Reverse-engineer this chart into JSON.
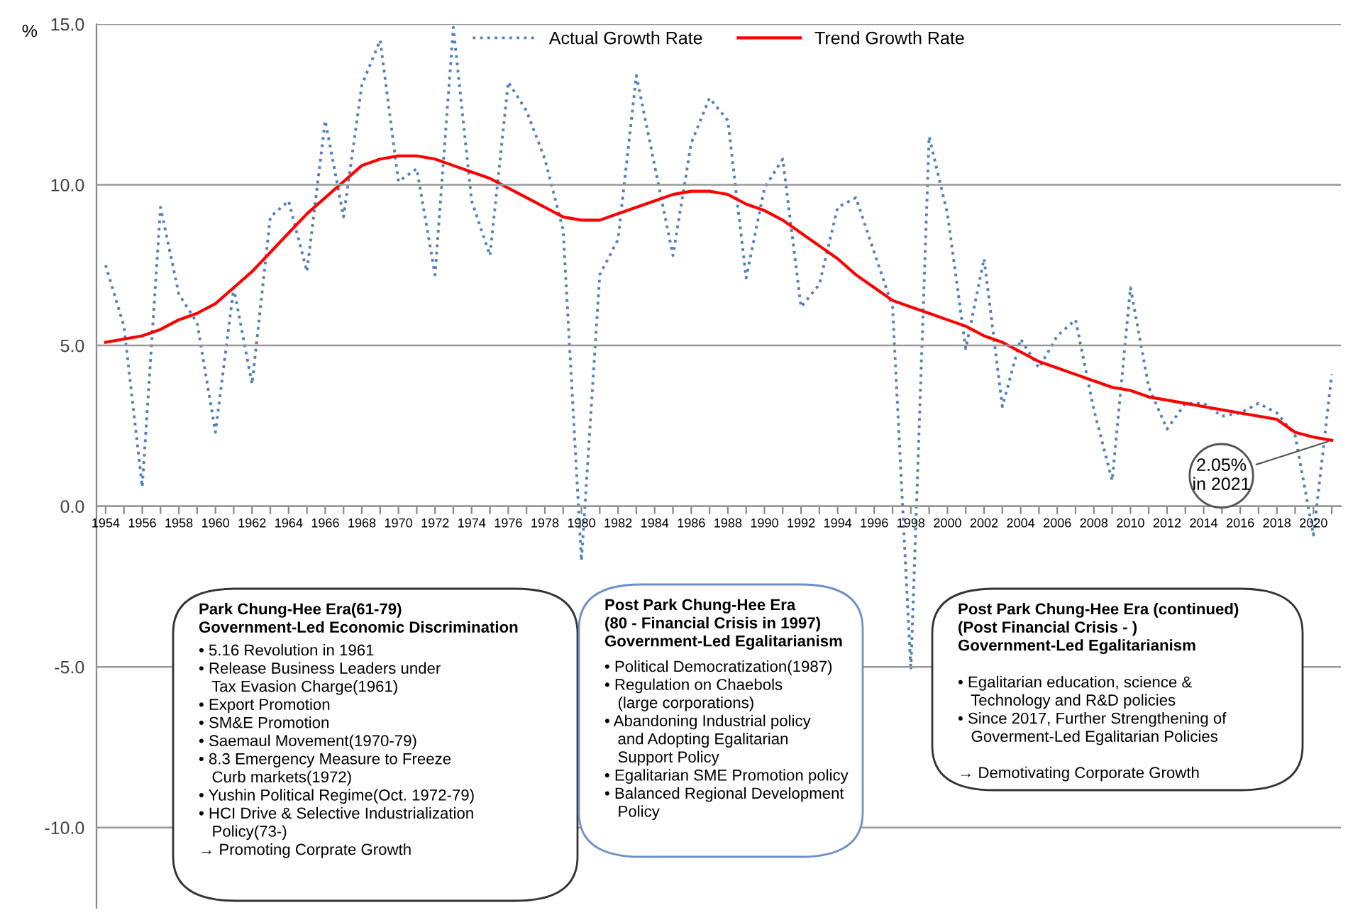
{
  "chart_data": {
    "type": "line",
    "ylabel": "%",
    "x": [
      1954,
      1955,
      1956,
      1957,
      1958,
      1959,
      1960,
      1961,
      1962,
      1963,
      1964,
      1965,
      1966,
      1967,
      1968,
      1969,
      1970,
      1971,
      1972,
      1973,
      1974,
      1975,
      1976,
      1977,
      1978,
      1979,
      1980,
      1981,
      1982,
      1983,
      1984,
      1985,
      1986,
      1987,
      1988,
      1989,
      1990,
      1991,
      1992,
      1993,
      1994,
      1995,
      1996,
      1997,
      1998,
      1999,
      2000,
      2001,
      2002,
      2003,
      2004,
      2005,
      2006,
      2007,
      2008,
      2009,
      2010,
      2011,
      2012,
      2013,
      2014,
      2015,
      2016,
      2017,
      2018,
      2019,
      2020,
      2021
    ],
    "series": [
      {
        "name": "Actual Growth Rate",
        "color": "#4f81bd",
        "line_style": "dotted",
        "values": [
          7.5,
          5.6,
          0.6,
          9.3,
          6.6,
          5.7,
          2.3,
          6.8,
          3.8,
          9.0,
          9.5,
          7.3,
          12.0,
          9.0,
          13.1,
          14.5,
          10.1,
          10.5,
          7.2,
          14.9,
          9.5,
          7.8,
          13.2,
          12.3,
          10.8,
          8.6,
          -1.7,
          7.2,
          8.3,
          13.4,
          10.6,
          7.8,
          11.3,
          12.7,
          12.0,
          7.1,
          9.9,
          10.8,
          6.2,
          6.9,
          9.3,
          9.6,
          7.9,
          6.2,
          -5.1,
          11.5,
          9.1,
          4.9,
          7.7,
          3.1,
          5.2,
          4.3,
          5.3,
          5.8,
          3.0,
          0.8,
          6.8,
          3.7,
          2.4,
          3.2,
          3.2,
          2.8,
          2.9,
          3.2,
          2.9,
          2.2,
          -0.9,
          4.1
        ]
      },
      {
        "name": "Trend Growth Rate",
        "color": "#ff0000",
        "line_style": "solid",
        "values": [
          5.1,
          5.2,
          5.3,
          5.5,
          5.8,
          6.0,
          6.3,
          6.8,
          7.3,
          7.9,
          8.5,
          9.1,
          9.6,
          10.1,
          10.6,
          10.8,
          10.9,
          10.9,
          10.8,
          10.6,
          10.4,
          10.2,
          9.9,
          9.6,
          9.3,
          9.0,
          8.9,
          8.9,
          9.1,
          9.3,
          9.5,
          9.7,
          9.8,
          9.8,
          9.7,
          9.4,
          9.2,
          8.9,
          8.5,
          8.1,
          7.7,
          7.2,
          6.8,
          6.4,
          6.2,
          6.0,
          5.8,
          5.6,
          5.3,
          5.1,
          4.8,
          4.5,
          4.3,
          4.1,
          3.9,
          3.7,
          3.6,
          3.4,
          3.3,
          3.2,
          3.1,
          3.0,
          2.9,
          2.8,
          2.7,
          2.3,
          2.15,
          2.05
        ]
      }
    ],
    "xlim": [
      1953.5,
      2021.5
    ],
    "ylim": [
      -12.5,
      15
    ],
    "yticks": [
      {
        "value": -10,
        "label": "-10.0"
      },
      {
        "value": -5,
        "label": "-5.0"
      },
      {
        "value": 0,
        "label": "0.0"
      },
      {
        "value": 5,
        "label": "5.0"
      },
      {
        "value": 10,
        "label": "10.0"
      },
      {
        "value": 15,
        "label": "15.0"
      }
    ],
    "xticks": [
      1954,
      {
        "value": 1955,
        "label": null
      },
      1956,
      {
        "value": 1957,
        "label": null
      },
      1958,
      {
        "value": 1959,
        "label": null
      },
      1960,
      {
        "value": 1961,
        "label": null
      },
      1962,
      {
        "value": 1963,
        "label": null
      },
      1964,
      {
        "value": 1965,
        "label": null
      },
      1966,
      {
        "value": 1967,
        "label": null
      },
      1968,
      {
        "value": 1969,
        "label": null
      },
      1970,
      {
        "value": 1971,
        "label": null
      },
      1972,
      {
        "value": 1973,
        "label": null
      },
      1974,
      {
        "value": 1975,
        "label": null
      },
      1976,
      {
        "value": 1977,
        "label": null
      },
      1978,
      {
        "value": 1979,
        "label": null
      },
      1980,
      {
        "value": 1981,
        "label": null
      },
      1982,
      {
        "value": 1983,
        "label": null
      },
      1984,
      {
        "value": 1985,
        "label": null
      },
      1986,
      {
        "value": 1987,
        "label": null
      },
      1988,
      {
        "value": 1989,
        "label": null
      },
      1990,
      {
        "value": 1991,
        "label": null
      },
      1992,
      {
        "value": 1993,
        "label": null
      },
      1994,
      {
        "value": 1995,
        "label": null
      },
      1996,
      {
        "value": 1997,
        "label": null
      },
      1998,
      {
        "value": 1999,
        "label": null
      },
      2000,
      {
        "value": 2001,
        "label": null
      },
      2002,
      {
        "value": 2003,
        "label": null
      },
      2004,
      {
        "value": 2005,
        "label": null
      },
      2006,
      {
        "value": 2007,
        "label": null
      },
      2008,
      {
        "value": 2009,
        "label": null
      },
      2010,
      {
        "value": 2011,
        "label": null
      },
      2012,
      {
        "value": 2013,
        "label": null
      },
      2014,
      {
        "value": 2015,
        "label": null
      },
      2016,
      {
        "value": 2017,
        "label": null
      },
      2018,
      {
        "value": 2019,
        "label": null
      },
      2020,
      {
        "value": 2021,
        "label": null
      }
    ],
    "grid": "y",
    "legend": "top",
    "marker": "none",
    "annotations": [
      {
        "text": "2.05%\nin 2021",
        "x": 2021,
        "y": 2.05
      },
      "Park Chung-Hee Era(61-79)\nGovernment-Led Economic Discrimination",
      "• 5.16 Revolution in 1961\n• Release Business Leaders under\n   Tax Evasion Charge(1961)\n• Export Promotion\n• SM&E Promotion\n• Saemaul Movement(1970-79)\n• 8.3 Emergency Measure to Freeze\n   Curb markets(1972)\n• Yushin Political Regime(Oct. 1972-79)\n• HCI Drive & Selective Industrialization\n   Policy(73-)\n→ Promoting Corprate Growth",
      "Post Park Chung-Hee Era\n(80 - Financial Crisis in 1997)\nGovernment-Led Egalitarianism",
      "• Political Democratization(1987)\n• Regulation on Chaebols\n   (large corporations)\n• Abandoning Industrial policy\n   and Adopting Egalitarian\n   Support Policy\n• Egalitarian SME Promotion policy\n• Balanced Regional Development\n   Policy",
      "Post Park Chung-Hee Era (continued)\n(Post Financial Crisis - )\nGovernment-Led Egalitarianism",
      "• Egalitarian education, science &\n   Technology and R&D policies\n• Since 2017, Further Strengthening of\n   Goverment-Led Egalitarian Policies\n\n→ Demotivating Corporate Growth"
    ]
  }
}
